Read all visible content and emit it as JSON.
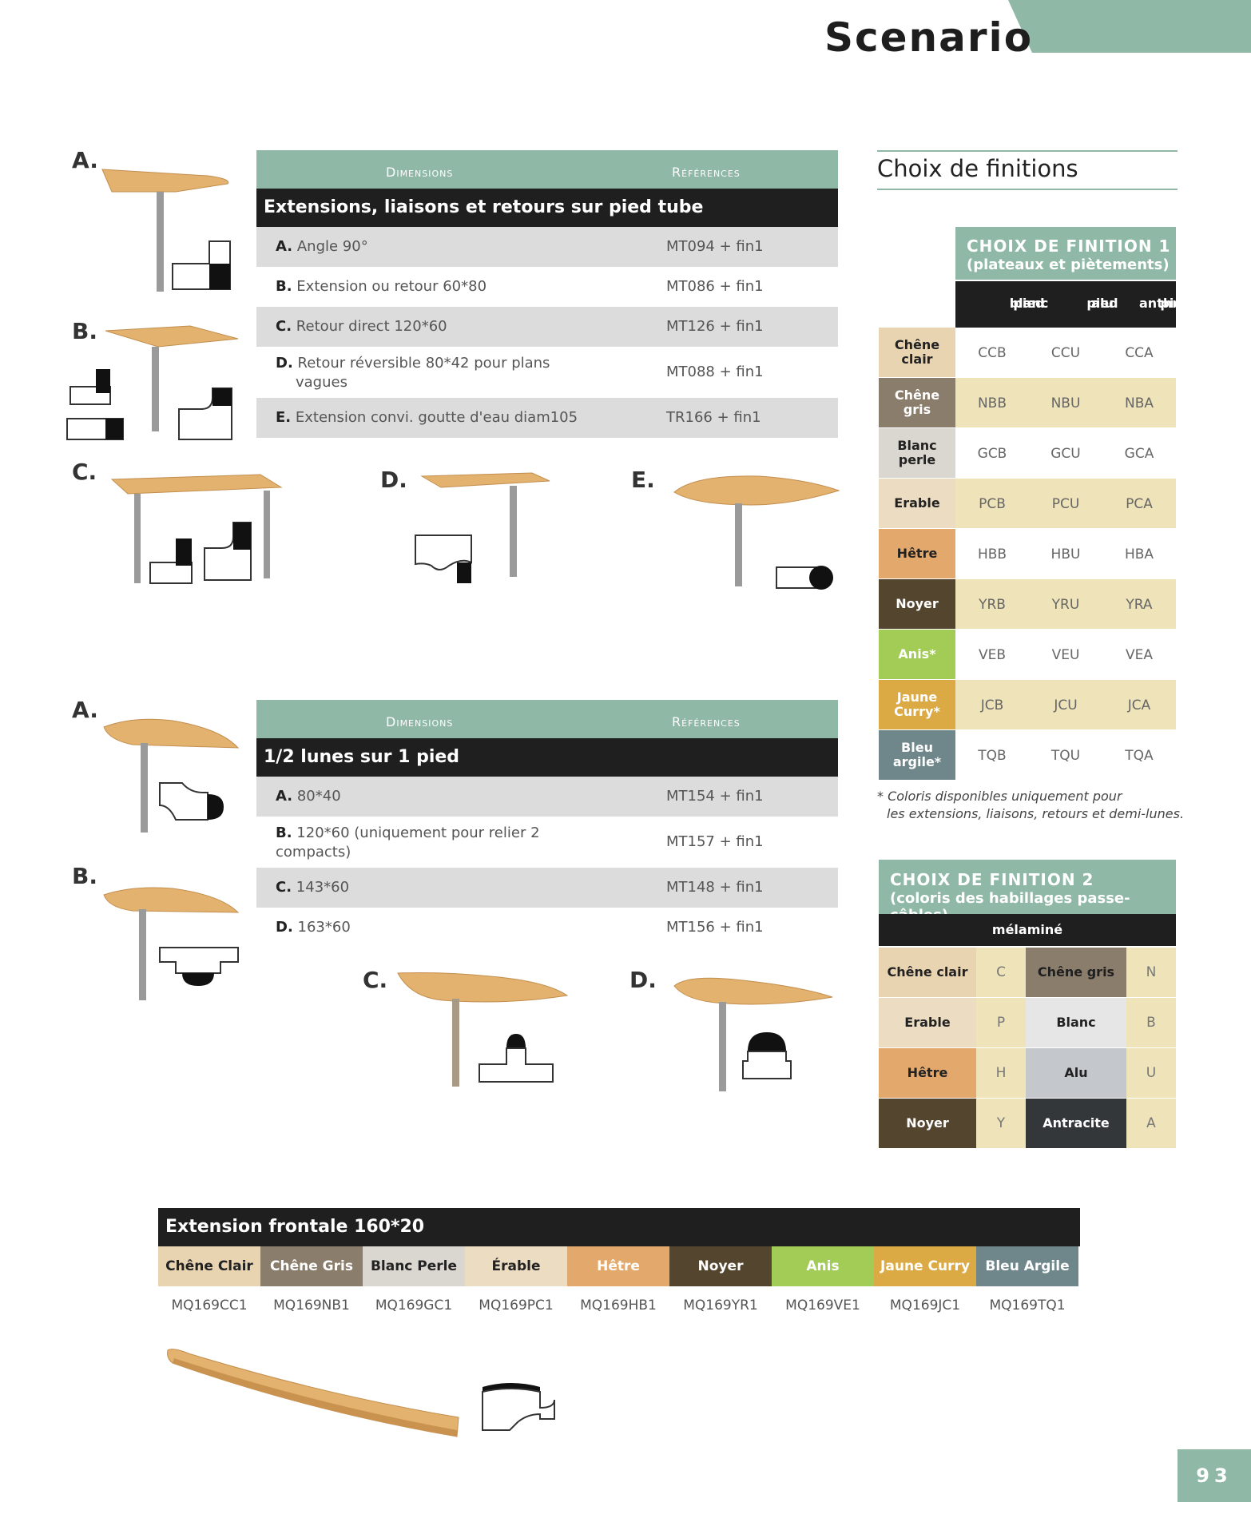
{
  "header": {
    "title": "Scenario",
    "page_number": "93"
  },
  "table1": {
    "col_dimensions": "Dimensions",
    "col_references": "Références",
    "section": "Extensions, liaisons et retours sur pied tube",
    "rows": [
      {
        "letter": "A.",
        "desc": "Angle 90°",
        "ref": "MT094 + fin1"
      },
      {
        "letter": "B.",
        "desc": "Extension ou retour 60*80",
        "ref": "MT086 + fin1"
      },
      {
        "letter": "C.",
        "desc": "Retour direct 120*60",
        "ref": "MT126 + fin1"
      },
      {
        "letter": "D.",
        "desc": "Retour réversible 80*42 pour plans",
        "desc2": "vagues",
        "ref": "MT088 + fin1"
      },
      {
        "letter": "E.",
        "desc": "Extension convi. goutte d'eau diam105",
        "ref": "TR166 + fin1"
      }
    ]
  },
  "table2": {
    "col_dimensions": "Dimensions",
    "col_references": "Références",
    "section": "1/2 lunes sur 1 pied",
    "rows": [
      {
        "letter": "A.",
        "desc": "80*40",
        "ref": "MT154 + fin1"
      },
      {
        "letter": "B.",
        "desc": "120*60 (uniquement pour relier 2",
        "desc2": "compacts)",
        "ref": "MT157 + fin1"
      },
      {
        "letter": "C.",
        "desc": "143*60",
        "ref": "MT148 + fin1"
      },
      {
        "letter": "D.",
        "desc": "163*60",
        "ref": "MT156 + fin1"
      }
    ]
  },
  "figures1": {
    "a": "A.",
    "b": "B.",
    "c": "C.",
    "d": "D.",
    "e": "E."
  },
  "figures2": {
    "a": "A.",
    "b": "B.",
    "c": "C.",
    "d": "D."
  },
  "finitions": {
    "title": "Choix de finitions",
    "f1": {
      "title": "CHOIX DE FINITION 1",
      "subtitle": "(plateaux et piètements)",
      "cols": [
        {
          "l1": "pied",
          "l2": "blanc"
        },
        {
          "l1": "pied",
          "l2": "alu"
        },
        {
          "l1": "pied",
          "l2": "anthracite"
        }
      ],
      "rows": [
        {
          "name": "Chêne clair",
          "codes": [
            "CCB",
            "CCU",
            "CCA"
          ],
          "swatch": "#e9d4b2",
          "text": "#222222",
          "rowbg": "#ffffff"
        },
        {
          "name": "Chêne gris",
          "codes": [
            "NBB",
            "NBU",
            "NBA"
          ],
          "swatch": "#8a7d6c",
          "text": "#ffffff",
          "rowbg": "#efe3b9"
        },
        {
          "name": "Blanc perle",
          "codes": [
            "GCB",
            "GCU",
            "GCA"
          ],
          "swatch": "#dad7d0",
          "text": "#222222",
          "rowbg": "#ffffff"
        },
        {
          "name": "Erable",
          "codes": [
            "PCB",
            "PCU",
            "PCA"
          ],
          "swatch": "#ecdcc1",
          "text": "#222222",
          "rowbg": "#efe3b9"
        },
        {
          "name": "Hêtre",
          "codes": [
            "HBB",
            "HBU",
            "HBA"
          ],
          "swatch": "#e3a86b",
          "text": "#222222",
          "rowbg": "#ffffff"
        },
        {
          "name": "Noyer",
          "codes": [
            "YRB",
            "YRU",
            "YRA"
          ],
          "swatch": "#54452f",
          "text": "#ffffff",
          "rowbg": "#efe3b9"
        },
        {
          "name": "Anis*",
          "codes": [
            "VEB",
            "VEU",
            "VEA"
          ],
          "swatch": "#a3cc57",
          "text": "#ffffff",
          "rowbg": "#ffffff"
        },
        {
          "name": "Jaune Curry*",
          "codes": [
            "JCB",
            "JCU",
            "JCA"
          ],
          "swatch": "#dcaa44",
          "text": "#ffffff",
          "rowbg": "#efe3b9"
        },
        {
          "name": "Bleu argile*",
          "codes": [
            "TQB",
            "TQU",
            "TQA"
          ],
          "swatch": "#6f878a",
          "text": "#ffffff",
          "rowbg": "#ffffff"
        }
      ],
      "note1": "* Coloris disponibles uniquement pour",
      "note2": "les extensions, liaisons, retours et demi-lunes."
    },
    "f2": {
      "title": "CHOIX DE FINITION 2",
      "subtitle": "(coloris des habillages passe-câbles)",
      "header": "mélaminé",
      "rows": [
        {
          "left": "Chêne clair",
          "left_code": "C",
          "left_swatch": "#e9d4b2",
          "left_text": "#222222",
          "right": "Chêne gris",
          "right_code": "N",
          "right_swatch": "#8a7d6c",
          "right_text": "#1f1f1f"
        },
        {
          "left": "Erable",
          "left_code": "P",
          "left_swatch": "#ecdcc1",
          "left_text": "#222222",
          "right": "Blanc",
          "right_code": "B",
          "right_swatch": "#e6e6e6",
          "right_text": "#222222"
        },
        {
          "left": "Hêtre",
          "left_code": "H",
          "left_swatch": "#e3a86b",
          "left_text": "#222222",
          "right": "Alu",
          "right_code": "U",
          "right_swatch": "#c4c8cc",
          "right_text": "#222222"
        },
        {
          "left": "Noyer",
          "left_code": "Y",
          "left_swatch": "#54452f",
          "left_text": "#ffffff",
          "right": "Antracite",
          "right_code": "A",
          "right_swatch": "#33373a",
          "right_text": "#ffffff"
        }
      ]
    }
  },
  "frontale": {
    "section": "Extension frontale 160*20",
    "items": [
      {
        "name": "Chêne Clair",
        "ref": "MQ169CC1",
        "color": "#e9d4b2",
        "text": "#222222"
      },
      {
        "name": "Chêne Gris",
        "ref": "MQ169NB1",
        "color": "#8a7d6c",
        "text": "#ffffff"
      },
      {
        "name": "Blanc Perle",
        "ref": "MQ169GC1",
        "color": "#dad7d0",
        "text": "#222222"
      },
      {
        "name": "Érable",
        "ref": "MQ169PC1",
        "color": "#ecdcc1",
        "text": "#222222"
      },
      {
        "name": "Hêtre",
        "ref": "MQ169HB1",
        "color": "#e3a86b",
        "text": "#ffffff"
      },
      {
        "name": "Noyer",
        "ref": "MQ169YR1",
        "color": "#54452f",
        "text": "#ffffff"
      },
      {
        "name": "Anis",
        "ref": "MQ169VE1",
        "color": "#a3cc57",
        "text": "#ffffff"
      },
      {
        "name": "Jaune Curry",
        "ref": "MQ169JC1",
        "color": "#dcaa44",
        "text": "#ffffff"
      },
      {
        "name": "Bleu Argile",
        "ref": "MQ169TQ1",
        "color": "#6f878a",
        "text": "#ffffff"
      }
    ]
  },
  "colors": {
    "accent": "#8fb8a7",
    "dark": "#1f1f1f",
    "wood": "#e3b26e",
    "leg": "#9a9a9a"
  }
}
